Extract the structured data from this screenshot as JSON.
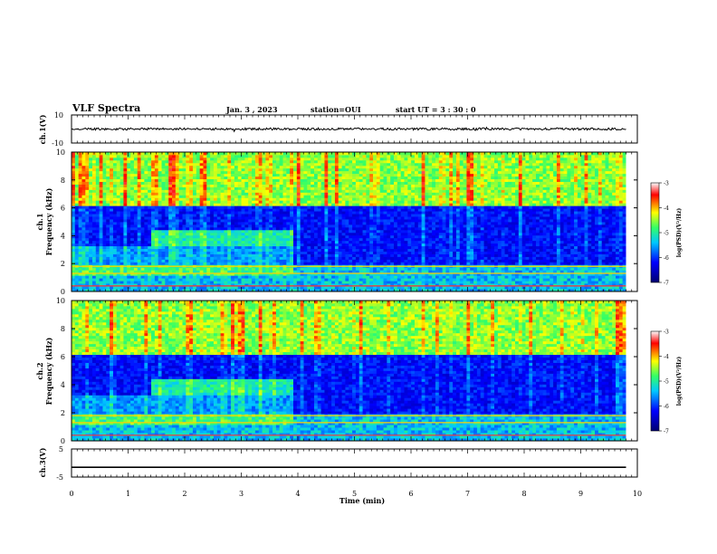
{
  "header": {
    "title": "VLF Spectra",
    "date": "Jan. 3 , 2023",
    "station": "station=OUI",
    "start_ut": "start UT = 3 : 30 : 0"
  },
  "chart_data": {
    "type": "heatmap",
    "x_axis": {
      "label": "Time (min)",
      "range": [
        0,
        10
      ],
      "ticks": [
        "0",
        "1",
        "2",
        "3",
        "4",
        "5",
        "6",
        "7",
        "8",
        "9",
        "10"
      ]
    },
    "panels": [
      {
        "id": "ch1_waveform",
        "type": "line",
        "ylabel": "ch.1(V)",
        "yrange": [
          -10,
          10
        ],
        "ticks": [
          "10",
          "-10"
        ]
      },
      {
        "id": "ch1_spectrogram",
        "type": "heatmap",
        "ylabel_top": "ch.1",
        "ylabel": "Frequency (kHz)",
        "yrange": [
          0,
          10
        ],
        "ticks": [
          "0",
          "2",
          "4",
          "6",
          "8",
          "10"
        ],
        "colorbar": {
          "label": "log(PSD)(V²/Hz)",
          "range": [
            -7,
            -3
          ],
          "ticks": [
            "-3",
            "-4",
            "-5",
            "-6",
            "-7"
          ]
        }
      },
      {
        "id": "ch2_spectrogram",
        "type": "heatmap",
        "ylabel_top": "ch.2",
        "ylabel": "Frequency (kHz)",
        "yrange": [
          0,
          10
        ],
        "ticks": [
          "0",
          "2",
          "4",
          "6",
          "8",
          "10"
        ],
        "colorbar": {
          "label": "log(PSD)(V²/Hz)",
          "range": [
            -7,
            -3
          ],
          "ticks": [
            "-3",
            "-4",
            "-5",
            "-6",
            "-7"
          ]
        }
      },
      {
        "id": "ch3_waveform",
        "type": "line",
        "ylabel": "ch.3(V)",
        "yrange": [
          -5,
          5
        ],
        "ticks": [
          "5",
          "-5"
        ],
        "constant_value": -1.5
      }
    ],
    "data_end_time_min": 9.8,
    "features": {
      "emission_band_khz": [
        3.8,
        4.5
      ],
      "emission_time_min": [
        1.4,
        2.4
      ],
      "band_end_time_min": 3.9,
      "strong_lines_khz": [
        0.4,
        1.3,
        1.8
      ]
    }
  },
  "colors": {
    "colormap": [
      "#00007a",
      "#0000ff",
      "#00c8ff",
      "#33ff66",
      "#ffff00",
      "#ff0000",
      "#ffffff"
    ],
    "axis": "#000000"
  }
}
